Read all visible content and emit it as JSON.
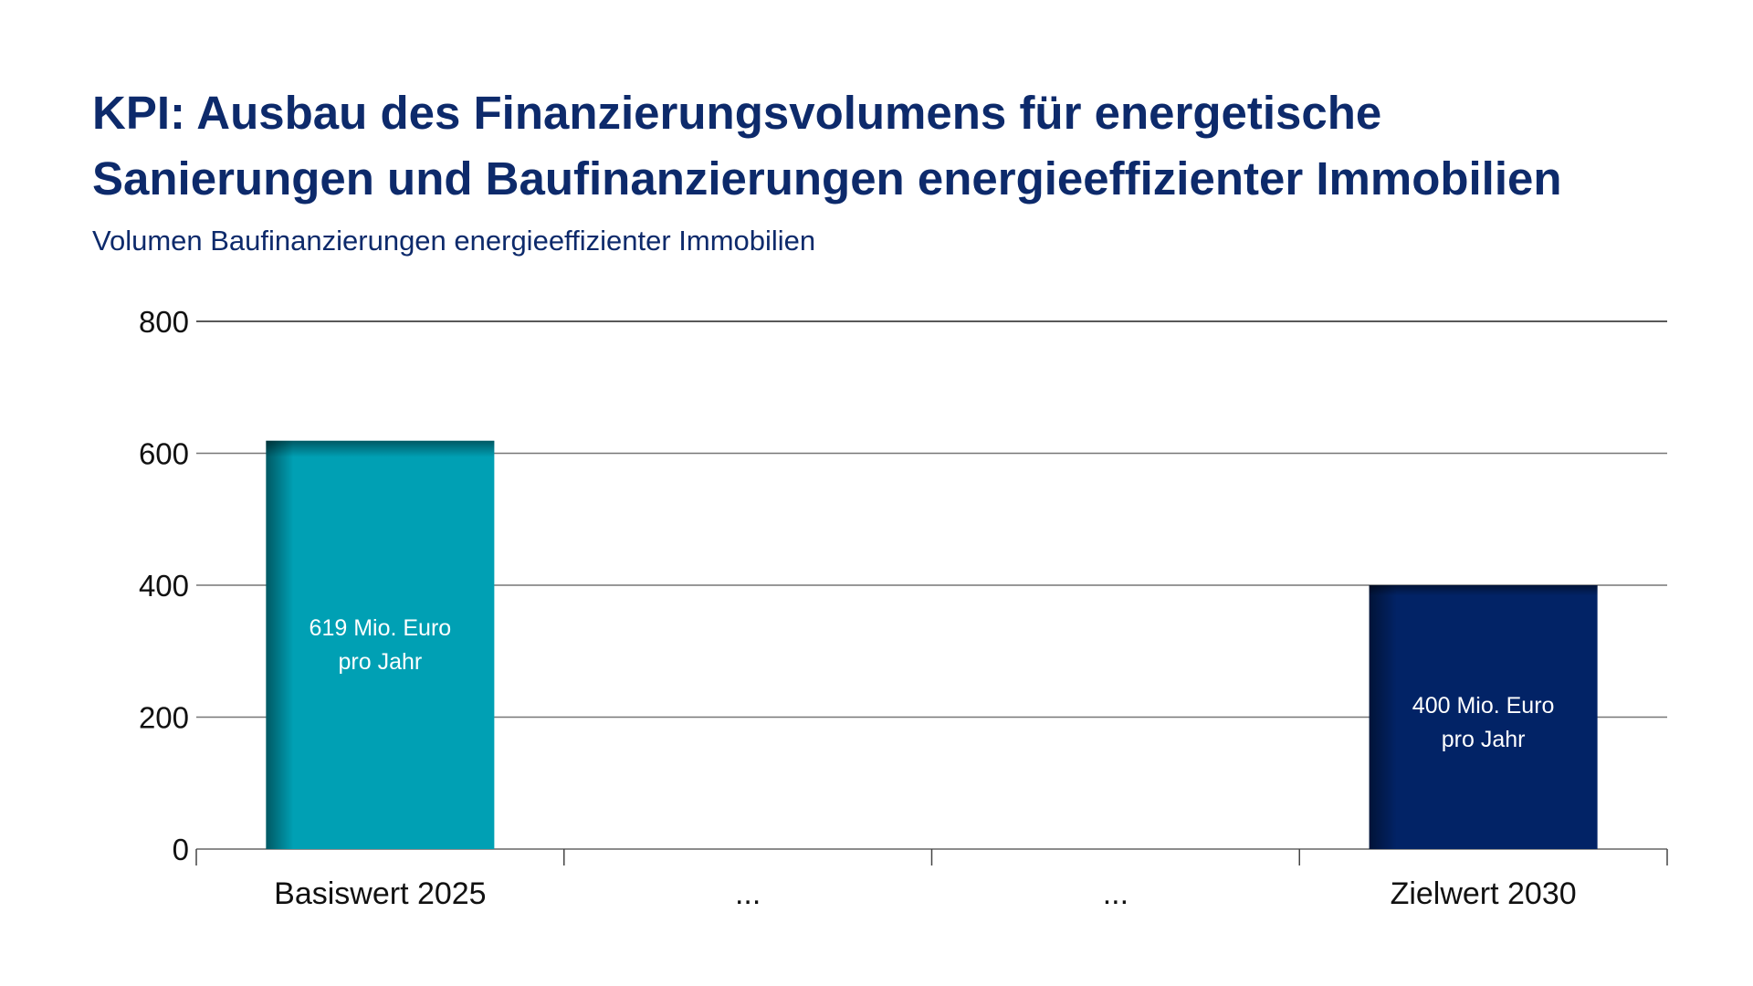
{
  "chart_data": {
    "type": "bar",
    "title_lines": [
      "KPI: Ausbau des Finanzierungsvolumens für energetische",
      "Sanierungen und Baufinanzierungen energieeffizienter Immobilien"
    ],
    "subtitle": "Volumen Baufinanzierungen energieeffizienter Immobilien",
    "categories": [
      "Basiswert 2025",
      "...",
      "...",
      "Zielwert 2030"
    ],
    "values": [
      619,
      null,
      null,
      400
    ],
    "bar_labels": [
      [
        "619 Mio. Euro",
        "pro Jahr"
      ],
      null,
      null,
      [
        "400 Mio. Euro",
        "pro Jahr"
      ]
    ],
    "bar_colors": [
      "#00a0b4",
      null,
      null,
      "#022366"
    ],
    "ylim": [
      0,
      800
    ],
    "yticks": [
      "0",
      "200",
      "400",
      "600",
      "800"
    ],
    "ytick_values": [
      0,
      200,
      400,
      600,
      800
    ],
    "xlabel": "",
    "ylabel": "",
    "grid": true,
    "legend": "none"
  }
}
